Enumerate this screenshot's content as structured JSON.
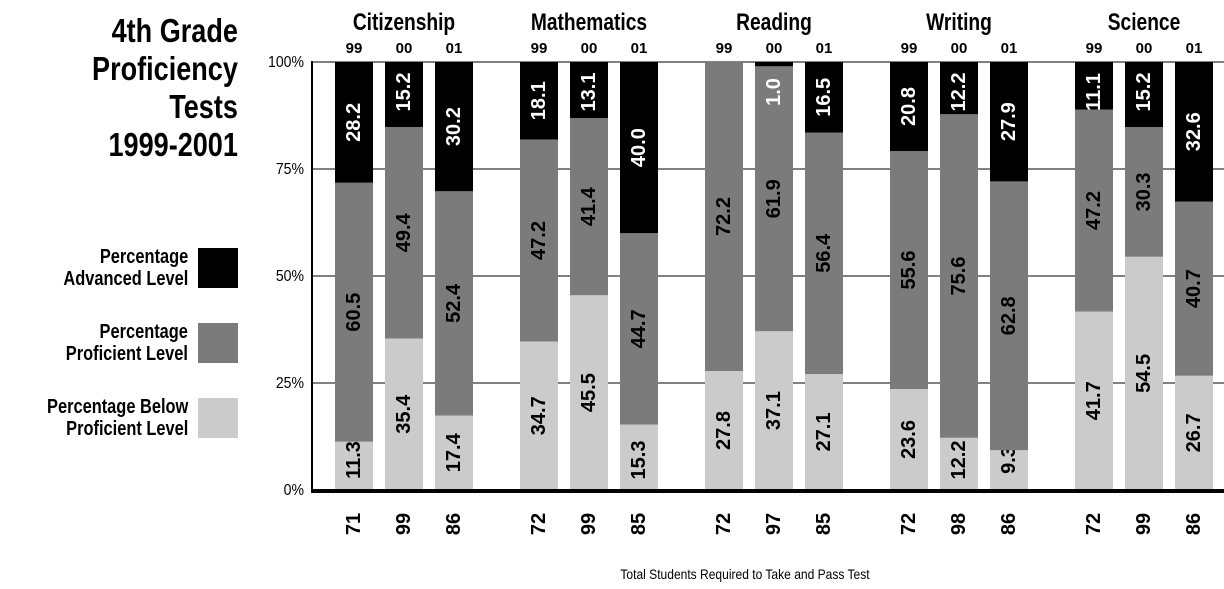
{
  "title_lines": [
    "4th Grade",
    "Proficiency",
    "Tests",
    "1999-2001"
  ],
  "legend": [
    {
      "label_lines": [
        "Percentage",
        "Advanced Level"
      ],
      "color": "#000000"
    },
    {
      "label_lines": [
        "Percentage",
        "Proficient Level"
      ],
      "color": "#7b7b7b"
    },
    {
      "label_lines": [
        "Percentage Below",
        "Proficient Level"
      ],
      "color": "#cbcbcb"
    }
  ],
  "footer": "Total Students Required to Take and Pass Test",
  "chart_data": {
    "type": "bar",
    "stacked": true,
    "percent_axis": true,
    "ylim": [
      0,
      100
    ],
    "yticks": [
      "0%",
      "25%",
      "50%",
      "75%",
      "100%"
    ],
    "grid": true,
    "colors": {
      "below": "#cbcbcb",
      "proficient": "#7b7b7b",
      "advanced": "#000000"
    },
    "subjects": [
      {
        "name": "Citizenship",
        "years": [
          "99",
          "00",
          "01"
        ],
        "below": [
          11.3,
          35.4,
          17.4
        ],
        "proficient": [
          60.5,
          49.4,
          52.4
        ],
        "advanced": [
          28.2,
          15.2,
          30.2
        ],
        "totals": [
          "71",
          "99",
          "86"
        ]
      },
      {
        "name": "Mathematics",
        "years": [
          "99",
          "00",
          "01"
        ],
        "below": [
          34.7,
          45.5,
          15.3
        ],
        "proficient": [
          47.2,
          41.4,
          44.7
        ],
        "advanced": [
          18.1,
          13.1,
          40.0
        ],
        "totals": [
          "72",
          "99",
          "85"
        ]
      },
      {
        "name": "Reading",
        "years": [
          "99",
          "00",
          "01"
        ],
        "below": [
          27.8,
          37.1,
          27.1
        ],
        "proficient": [
          72.2,
          61.9,
          56.4
        ],
        "advanced": [
          null,
          1.0,
          16.5
        ],
        "totals": [
          "72",
          "97",
          "85"
        ]
      },
      {
        "name": "Writing",
        "years": [
          "99",
          "00",
          "01"
        ],
        "below": [
          23.6,
          12.2,
          9.3
        ],
        "proficient": [
          55.6,
          75.6,
          62.8
        ],
        "advanced": [
          20.8,
          12.2,
          27.9
        ],
        "totals": [
          "72",
          "98",
          "86"
        ]
      },
      {
        "name": "Science",
        "years": [
          "99",
          "00",
          "01"
        ],
        "below": [
          41.7,
          54.5,
          26.7
        ],
        "proficient": [
          47.2,
          30.3,
          40.7
        ],
        "advanced": [
          11.1,
          15.2,
          32.6
        ],
        "totals": [
          "72",
          "99",
          "86"
        ]
      }
    ]
  }
}
